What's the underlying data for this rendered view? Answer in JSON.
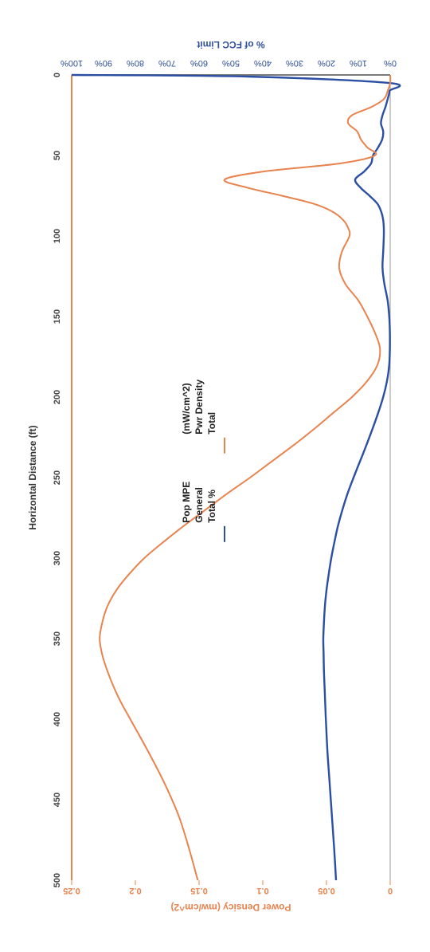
{
  "chart_data": {
    "type": "line",
    "xlabel": "Horizontal Distance (ft)",
    "ylabel_left": "% of FCC Limit",
    "ylabel_right": "Power Densicy (mw/cm^2)",
    "xlim": [
      0,
      500
    ],
    "ylim_left": [
      0,
      100
    ],
    "ylim_right": [
      0,
      0.25
    ],
    "x_ticks": [
      "0",
      "50",
      "100",
      "150",
      "200",
      "250",
      "300",
      "350",
      "400",
      "450",
      "500"
    ],
    "y_left_ticks": [
      "0%",
      "10%",
      "20%",
      "30%",
      "40%",
      "50%",
      "60%",
      "70%",
      "80%",
      "90%",
      "100%"
    ],
    "y_right_ticks": [
      "0",
      "0.05",
      "0.1",
      "0.15",
      "0.2",
      "0.25"
    ],
    "rotation": "image rotated 180 degrees",
    "legend_position": "top",
    "series": [
      {
        "name": "Total % General Pop MPE",
        "legend_lines": [
          "Total %",
          "General",
          "Pop MPE"
        ],
        "axis": "left",
        "color": "#2b4fa3",
        "x": [
          0,
          1,
          5,
          10,
          15,
          20,
          25,
          30,
          35,
          40,
          45,
          50,
          55,
          60,
          65,
          70,
          75,
          80,
          85,
          90,
          95,
          100,
          110,
          120,
          130,
          140,
          150,
          160,
          170,
          180,
          190,
          200,
          210,
          220,
          230,
          240,
          250,
          260,
          270,
          280,
          290,
          300,
          310,
          320,
          330,
          340,
          350,
          360,
          370,
          380,
          390,
          400,
          420,
          440,
          460,
          480,
          500
        ],
        "values": [
          100,
          45,
          0.3,
          0.2,
          0.8,
          1.5,
          2.4,
          2.9,
          2.2,
          2.5,
          3.8,
          5.4,
          6.0,
          8.2,
          11.0,
          9.3,
          6.5,
          4.0,
          2.8,
          2.2,
          2.0,
          2.0,
          2.2,
          2.4,
          1.8,
          0.8,
          0.3,
          0.1,
          0.1,
          0.3,
          1.0,
          2.2,
          3.8,
          5.6,
          7.5,
          9.5,
          11.5,
          13.4,
          15.0,
          16.4,
          17.5,
          18.5,
          19.3,
          20.0,
          20.5,
          20.8,
          21.0,
          20.9,
          20.8,
          20.6,
          20.4,
          20.2,
          19.7,
          19.0,
          18.3,
          17.6,
          17.0
        ]
      },
      {
        "name": "Total Pwr Density (mW/cm^2)",
        "legend_lines": [
          "Total",
          "Pwr Density",
          "(mW/cm^2)"
        ],
        "axis": "right",
        "color": "#e8834e",
        "x": [
          0,
          5,
          10,
          15,
          20,
          25,
          30,
          35,
          40,
          45,
          50,
          55,
          60,
          65,
          70,
          75,
          80,
          85,
          90,
          95,
          100,
          110,
          120,
          130,
          140,
          150,
          160,
          170,
          180,
          190,
          200,
          210,
          220,
          230,
          240,
          250,
          260,
          270,
          280,
          290,
          300,
          310,
          320,
          330,
          340,
          350,
          360,
          370,
          380,
          390,
          400,
          420,
          440,
          460,
          480,
          500
        ],
        "values": [
          0,
          0,
          0.002,
          0.005,
          0.015,
          0.03,
          0.033,
          0.026,
          0.023,
          0.018,
          0.012,
          0.04,
          0.1,
          0.13,
          0.112,
          0.085,
          0.06,
          0.045,
          0.037,
          0.033,
          0.032,
          0.038,
          0.04,
          0.035,
          0.025,
          0.018,
          0.012,
          0.008,
          0.01,
          0.018,
          0.03,
          0.045,
          0.06,
          0.076,
          0.093,
          0.11,
          0.128,
          0.145,
          0.162,
          0.178,
          0.193,
          0.205,
          0.215,
          0.222,
          0.226,
          0.228,
          0.226,
          0.222,
          0.217,
          0.211,
          0.204,
          0.19,
          0.177,
          0.166,
          0.158,
          0.151
        ]
      }
    ]
  }
}
